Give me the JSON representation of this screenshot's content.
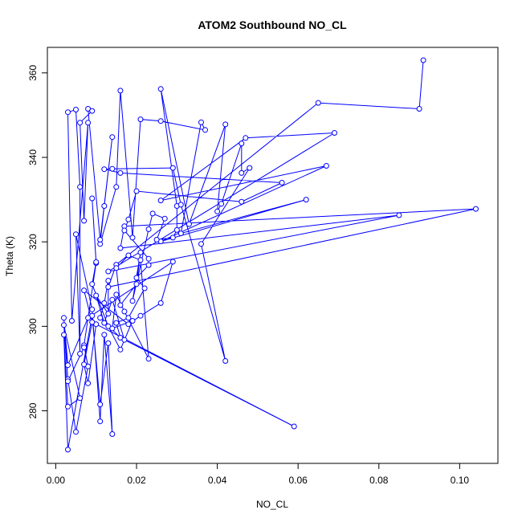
{
  "chart_data": {
    "type": "line",
    "title": "ATOM2 Southbound NO_CL",
    "xlabel": "NO_CL",
    "ylabel": "Theta (K)",
    "xlim": [
      0.0,
      0.104
    ],
    "ylim": [
      270.5,
      363
    ],
    "xticks": [
      0.0,
      0.02,
      0.04,
      0.06,
      0.08,
      0.1
    ],
    "xtick_labels": [
      "0.00",
      "0.02",
      "0.04",
      "0.06",
      "0.08",
      "0.10"
    ],
    "yticks": [
      280,
      300,
      320,
      340,
      360
    ],
    "ytick_labels": [
      "280",
      "300",
      "320",
      "340",
      "360"
    ],
    "grid": false,
    "legend": "none",
    "series_color": "#0000ff",
    "marker": "open-circle",
    "series": [
      {
        "values": [
          [
            0.091,
            363.0
          ],
          [
            0.09,
            351.5
          ],
          [
            0.065,
            352.9
          ],
          [
            0.015,
            314.6
          ],
          [
            0.013,
            309.3
          ],
          [
            0.104,
            327.8
          ],
          [
            0.017,
            323.7
          ],
          [
            0.016,
            318.5
          ],
          [
            0.085,
            326.3
          ],
          [
            0.013,
            313.0
          ],
          [
            0.069,
            345.8
          ],
          [
            0.047,
            344.6
          ],
          [
            0.026,
            329.8
          ],
          [
            0.067,
            338.0
          ],
          [
            0.026,
            320.1
          ],
          [
            0.062,
            330.0
          ],
          [
            0.031,
            322.0
          ],
          [
            0.036,
            348.3
          ],
          [
            0.037,
            346.5
          ],
          [
            0.026,
            348.6
          ],
          [
            0.021,
            349.0
          ],
          [
            0.019,
            321.0
          ],
          [
            0.016,
            355.8
          ],
          [
            0.015,
            333.0
          ],
          [
            0.011,
            319.5
          ],
          [
            0.012,
            328.5
          ],
          [
            0.014,
            344.8
          ],
          [
            0.011,
            320.5
          ],
          [
            0.008,
            351.5
          ],
          [
            0.009,
            351.0
          ],
          [
            0.006,
            348.2
          ],
          [
            0.007,
            325.0
          ],
          [
            0.008,
            348.2
          ],
          [
            0.004,
            301.3
          ],
          [
            0.003,
            350.7
          ],
          [
            0.005,
            351.3
          ],
          [
            0.006,
            333.0
          ],
          [
            0.006,
            293.5
          ],
          [
            0.005,
            321.8
          ],
          [
            0.009,
            304.0
          ],
          [
            0.011,
            277.5
          ],
          [
            0.012,
            298.0
          ],
          [
            0.014,
            274.5
          ],
          [
            0.013,
            296.0
          ],
          [
            0.011,
            281.5
          ],
          [
            0.009,
            302.5
          ],
          [
            0.003,
            270.8
          ],
          [
            0.002,
            298.0
          ],
          [
            0.003,
            281.0
          ],
          [
            0.006,
            283.0
          ],
          [
            0.002,
            300.3
          ],
          [
            0.003,
            287.5
          ],
          [
            0.005,
            275.0
          ],
          [
            0.008,
            290.5
          ],
          [
            0.007,
            295.5
          ],
          [
            0.01,
            315.0
          ],
          [
            0.009,
            330.3
          ],
          [
            0.01,
            315.2
          ],
          [
            0.009,
            310.0
          ],
          [
            0.013,
            300.0
          ],
          [
            0.016,
            294.5
          ],
          [
            0.019,
            301.3
          ],
          [
            0.014,
            299.5
          ],
          [
            0.015,
            307.5
          ],
          [
            0.017,
            303.5
          ],
          [
            0.023,
            292.3
          ],
          [
            0.021,
            315.7
          ],
          [
            0.018,
            316.8
          ],
          [
            0.015,
            313.8
          ],
          [
            0.016,
            305.0
          ],
          [
            0.02,
            310.0
          ],
          [
            0.021,
            317.5
          ],
          [
            0.019,
            306.0
          ],
          [
            0.023,
            323.0
          ],
          [
            0.024,
            326.7
          ],
          [
            0.027,
            325.5
          ],
          [
            0.025,
            320.5
          ],
          [
            0.029,
            321.0
          ],
          [
            0.03,
            322.8
          ],
          [
            0.03,
            328.5
          ],
          [
            0.026,
            356.2
          ],
          [
            0.033,
            324.2
          ],
          [
            0.042,
            347.8
          ],
          [
            0.04,
            327.2
          ],
          [
            0.041,
            329.0
          ],
          [
            0.046,
            343.3
          ],
          [
            0.046,
            336.3
          ],
          [
            0.048,
            337.5
          ],
          [
            0.036,
            319.5
          ],
          [
            0.042,
            291.8
          ],
          [
            0.031,
            328.8
          ],
          [
            0.029,
            337.5
          ],
          [
            0.014,
            337.3
          ],
          [
            0.012,
            337.2
          ],
          [
            0.016,
            336.3
          ],
          [
            0.056,
            334.0
          ],
          [
            0.046,
            329.5
          ],
          [
            0.02,
            332.0
          ],
          [
            0.018,
            325.3
          ],
          [
            0.017,
            322.7
          ],
          [
            0.023,
            316.0
          ],
          [
            0.023,
            314.5
          ],
          [
            0.02,
            311.5
          ],
          [
            0.022,
            309.0
          ],
          [
            0.018,
            302.0
          ],
          [
            0.015,
            300.8
          ],
          [
            0.016,
            297.3
          ],
          [
            0.011,
            302.0
          ],
          [
            0.012,
            305.5
          ],
          [
            0.013,
            310.8
          ],
          [
            0.013,
            303.0
          ],
          [
            0.01,
            307.3
          ],
          [
            0.012,
            300.8
          ],
          [
            0.014,
            306.3
          ],
          [
            0.017,
            296.8
          ],
          [
            0.059,
            276.3
          ],
          [
            0.01,
            300.5
          ],
          [
            0.008,
            286.5
          ],
          [
            0.007,
            291.0
          ],
          [
            0.009,
            301.0
          ],
          [
            0.007,
            308.5
          ],
          [
            0.018,
            300.5
          ],
          [
            0.021,
            302.5
          ],
          [
            0.026,
            305.5
          ],
          [
            0.029,
            315.3
          ],
          [
            0.008,
            302.0
          ],
          [
            0.003,
            290.8
          ],
          [
            0.002,
            302.0
          ],
          [
            0.003,
            287.0
          ],
          [
            0.007,
            295.0
          ]
        ]
      }
    ]
  }
}
